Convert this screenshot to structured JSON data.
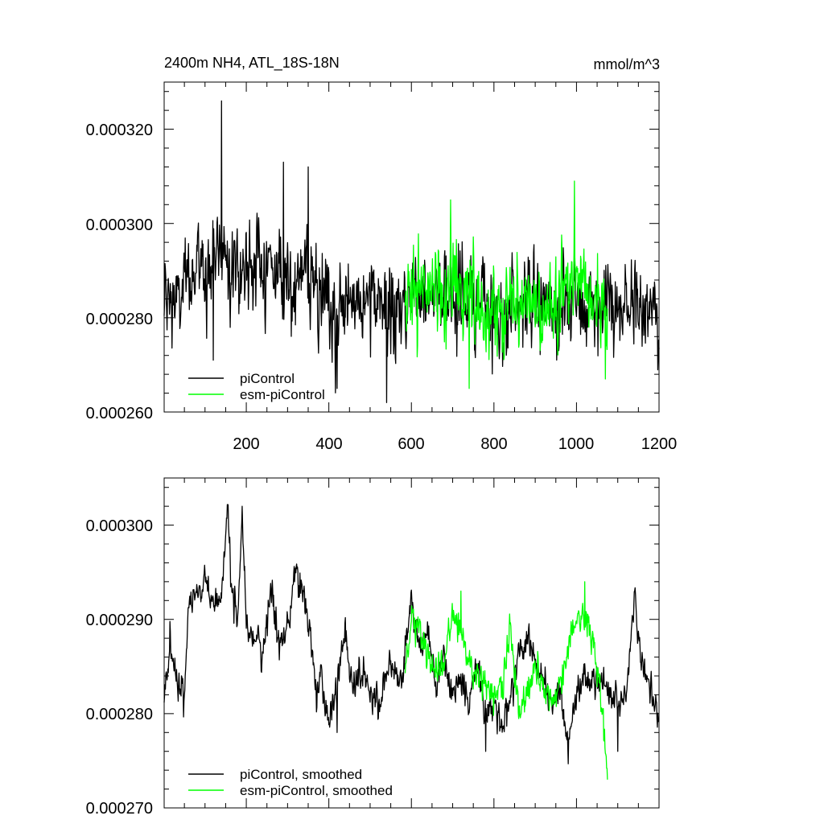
{
  "chart_data": [
    {
      "type": "line",
      "title": "2400m NH4, ATL_18S-18N",
      "units": "mmol/m^3",
      "xlim": [
        1,
        1200
      ],
      "ylim": [
        0.00026,
        0.00033
      ],
      "xticks": [
        200,
        400,
        600,
        800,
        1000,
        1200
      ],
      "xtick_labels": [
        "200",
        "400",
        "600",
        "800",
        "1000",
        "1200"
      ],
      "yticks": [
        0.00026,
        0.00028,
        0.0003,
        0.00032
      ],
      "ytick_labels": [
        "0.000260",
        "0.000280",
        "0.000300",
        "0.000320"
      ],
      "legend_position": "bottom-left",
      "series": [
        {
          "name": "piControl",
          "color": "#000000",
          "x_range": [
            1,
            1200
          ],
          "anchors_x": [
            1,
            40,
            80,
            120,
            140,
            180,
            220,
            260,
            300,
            340,
            380,
            420,
            460,
            500,
            540,
            580,
            620,
            660,
            700,
            740,
            780,
            820,
            860,
            900,
            940,
            980,
            1020,
            1060,
            1100,
            1140,
            1180,
            1200
          ],
          "anchors_y": [
            0.000283,
            0.000284,
            0.000291,
            0.000292,
            0.000296,
            0.00029,
            0.000292,
            0.000291,
            0.000288,
            0.000289,
            0.000283,
            0.00028,
            0.000284,
            0.000283,
            0.000281,
            0.000282,
            0.000287,
            0.000286,
            0.000284,
            0.000285,
            0.000283,
            0.00028,
            0.000284,
            0.000283,
            0.000282,
            0.000283,
            0.000282,
            0.000284,
            0.000281,
            0.000282,
            0.000282,
            0.00028
          ],
          "noise": 6.5e-06,
          "spikes": [
            [
              140,
              0.000326
            ],
            [
              120,
              0.000271
            ],
            [
              290,
              0.000313
            ],
            [
              350,
              0.000312
            ],
            [
              540,
              0.000262
            ],
            [
              420,
              0.000265
            ]
          ]
        },
        {
          "name": "esm-piControl",
          "color": "#00ff00",
          "x_range": [
            585,
            1075
          ],
          "anchors_x": [
            585,
            620,
            660,
            700,
            740,
            780,
            820,
            860,
            900,
            940,
            980,
            1020,
            1060,
            1075
          ],
          "anchors_y": [
            0.000285,
            0.000287,
            0.000285,
            0.000287,
            0.000284,
            0.000282,
            0.000283,
            0.000282,
            0.000284,
            0.000281,
            0.000286,
            0.000287,
            0.000284,
            0.000282
          ],
          "noise": 6.5e-06,
          "spikes": [
            [
              995,
              0.000309
            ],
            [
              740,
              0.000265
            ],
            [
              695,
              0.000305
            ],
            [
              1070,
              0.000267
            ]
          ]
        }
      ]
    },
    {
      "type": "line",
      "xlim": [
        1,
        1200
      ],
      "ylim": [
        0.00027,
        0.000305
      ],
      "xticks": [
        200,
        400,
        600,
        800,
        1000,
        1200
      ],
      "yticks": [
        0.00027,
        0.00028,
        0.00029,
        0.0003
      ],
      "ytick_labels": [
        "0.000270",
        "0.000280",
        "0.000290",
        "0.000300"
      ],
      "legend_position": "bottom-left",
      "series": [
        {
          "name": "piControl, smoothed",
          "color": "#000000",
          "x_range": [
            1,
            1200
          ],
          "anchors_x": [
            1,
            15,
            30,
            50,
            60,
            80,
            100,
            120,
            140,
            155,
            165,
            180,
            190,
            200,
            220,
            240,
            260,
            280,
            300,
            320,
            340,
            360,
            370,
            380,
            400,
            410,
            440,
            460,
            480,
            500,
            520,
            540,
            560,
            580,
            600,
            620,
            640,
            660,
            680,
            700,
            720,
            740,
            760,
            780,
            800,
            820,
            840,
            860,
            880,
            900,
            920,
            940,
            960,
            980,
            1000,
            1020,
            1040,
            1060,
            1080,
            1100,
            1120,
            1140,
            1160,
            1180,
            1200
          ],
          "anchors_y": [
            0.000281,
            0.000288,
            0.000284,
            0.000282,
            0.000292,
            0.000293,
            0.000294,
            0.000292,
            0.000293,
            0.000301,
            0.000292,
            0.000291,
            0.000302,
            0.00029,
            0.000288,
            0.000286,
            0.000294,
            0.000287,
            0.000289,
            0.000296,
            0.000292,
            0.000287,
            0.000281,
            0.000284,
            0.000279,
            0.000281,
            0.000289,
            0.000282,
            0.000284,
            0.000283,
            0.000281,
            0.000284,
            0.000285,
            0.000284,
            0.000292,
            0.000287,
            0.000289,
            0.000282,
            0.000286,
            0.000282,
            0.000284,
            0.000281,
            0.000285,
            0.00028,
            0.000281,
            0.000279,
            0.000282,
            0.000286,
            0.000288,
            0.000286,
            0.000283,
            0.000281,
            0.000282,
            0.000277,
            0.000282,
            0.000284,
            0.000283,
            0.000284,
            0.000282,
            0.000281,
            0.000282,
            0.000292,
            0.000285,
            0.000283,
            0.000279
          ],
          "noise": 1.2e-06,
          "spikes": [
            [
              155,
              0.000302
            ],
            [
              190,
              0.000302
            ],
            [
              1100,
              0.000276
            ],
            [
              780,
              0.000276
            ],
            [
              420,
              0.000278
            ]
          ]
        },
        {
          "name": "esm-piControl, smoothed",
          "color": "#00ff00",
          "x_range": [
            585,
            1075
          ],
          "anchors_x": [
            585,
            600,
            620,
            640,
            660,
            680,
            700,
            720,
            740,
            760,
            780,
            800,
            820,
            840,
            860,
            880,
            900,
            920,
            940,
            960,
            980,
            1000,
            1020,
            1040,
            1060,
            1075
          ],
          "anchors_y": [
            0.000285,
            0.00029,
            0.000289,
            0.000286,
            0.000284,
            0.000286,
            0.00029,
            0.000289,
            0.000285,
            0.000284,
            0.000283,
            0.000282,
            0.000283,
            0.000289,
            0.00028,
            0.000282,
            0.000286,
            0.000283,
            0.000281,
            0.000283,
            0.000287,
            0.00029,
            0.00029,
            0.000288,
            0.000282,
            0.000273
          ],
          "noise": 1.2e-06,
          "spikes": [
            [
              1020,
              0.000294
            ],
            [
              720,
              0.000293
            ],
            [
              1075,
              0.000273
            ]
          ]
        }
      ]
    }
  ]
}
